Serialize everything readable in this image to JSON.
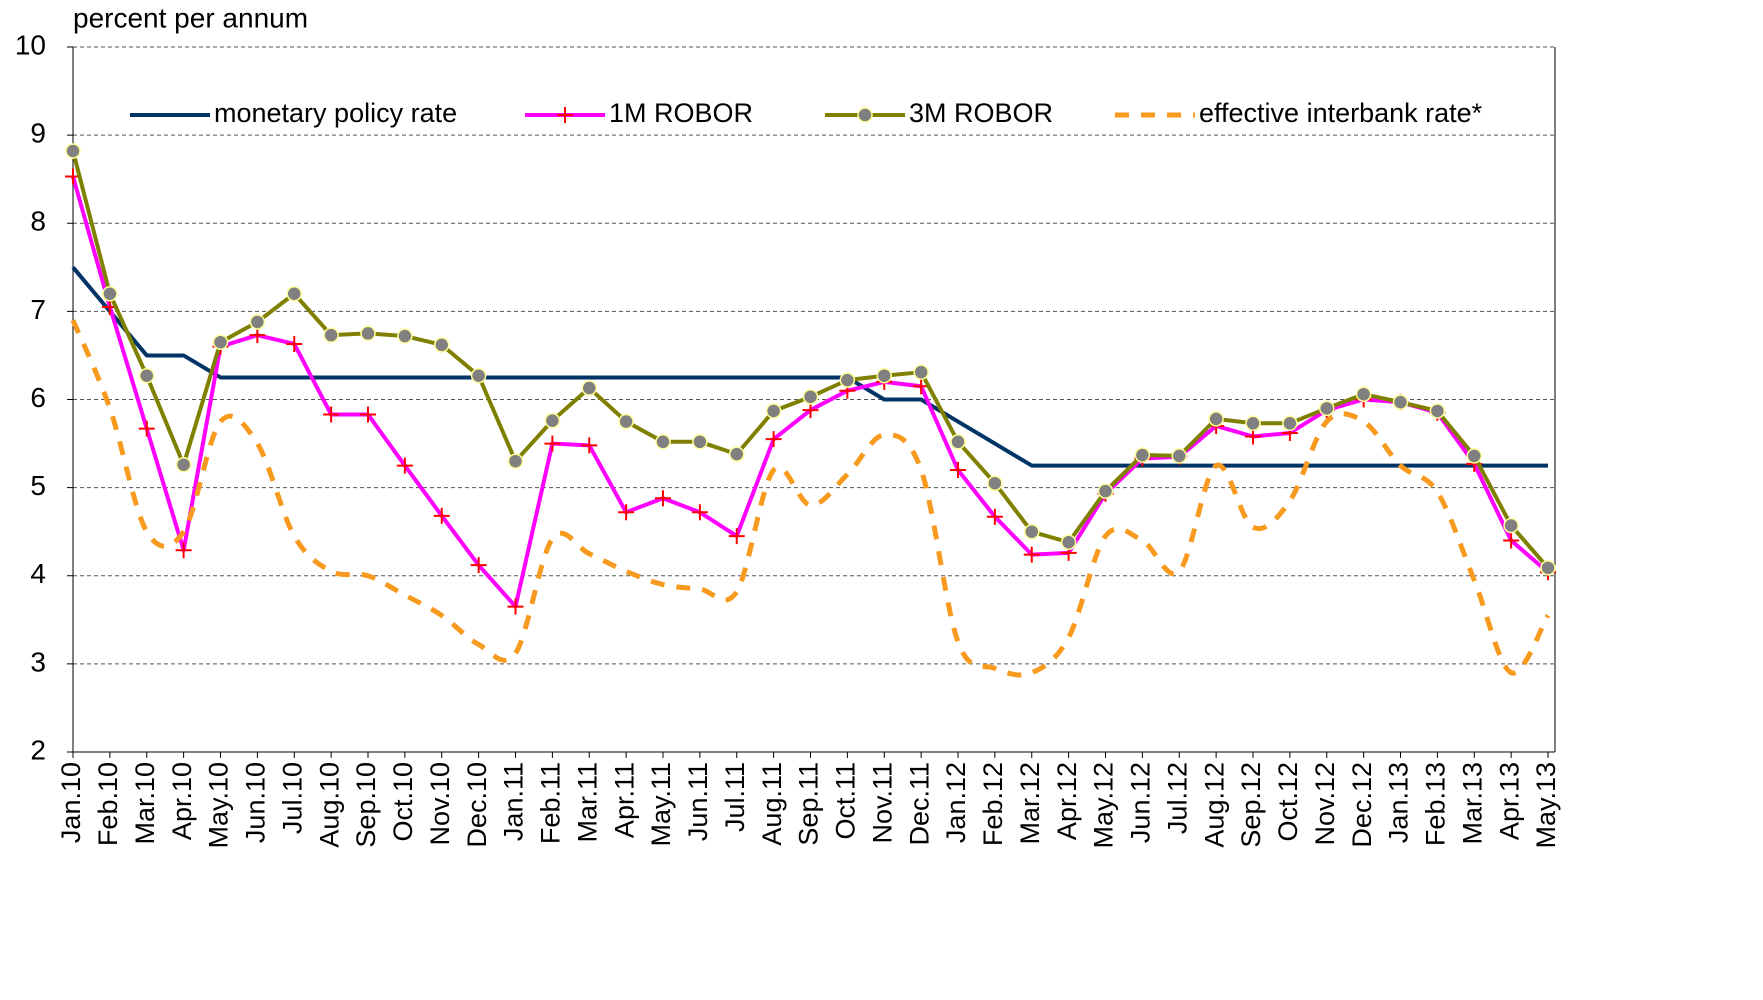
{
  "chart_data": {
    "type": "line",
    "y_axis_label": "percent per annum",
    "categories": [
      "Jan.10",
      "Feb.10",
      "Mar.10",
      "Apr.10",
      "May.10",
      "Jun.10",
      "Jul.10",
      "Aug.10",
      "Sep.10",
      "Oct.10",
      "Nov.10",
      "Dec.10",
      "Jan.11",
      "Feb.11",
      "Mar.11",
      "Apr.11",
      "May.11",
      "Jun.11",
      "Jul.11",
      "Aug.11",
      "Sep.11",
      "Oct.11",
      "Nov.11",
      "Dec.11",
      "Jan.12",
      "Feb.12",
      "Mar.12",
      "Apr.12",
      "May.12",
      "Jun.12",
      "Jul.12",
      "Aug.12",
      "Sep.12",
      "Oct.12",
      "Nov.12",
      "Dec.12",
      "Jan.13",
      "Feb.13",
      "Mar.13",
      "Apr.13",
      "May.13"
    ],
    "ylim": [
      2,
      10
    ],
    "yticks": [
      2,
      3,
      4,
      5,
      6,
      7,
      8,
      9,
      10
    ],
    "grid": true,
    "legend": "top",
    "series": [
      {
        "name": "monetary policy rate",
        "color": "#003366",
        "style": "solid",
        "marker": "none",
        "values": [
          7.5,
          7.0,
          6.5,
          6.5,
          6.25,
          6.25,
          6.25,
          6.25,
          6.25,
          6.25,
          6.25,
          6.25,
          6.25,
          6.25,
          6.25,
          6.25,
          6.25,
          6.25,
          6.25,
          6.25,
          6.25,
          6.25,
          6.0,
          6.0,
          5.75,
          5.5,
          5.25,
          5.25,
          5.25,
          5.25,
          5.25,
          5.25,
          5.25,
          5.25,
          5.25,
          5.25,
          5.25,
          5.25,
          5.25,
          5.25,
          5.25
        ]
      },
      {
        "name": "1M ROBOR",
        "color": "#ff00ff",
        "style": "solid",
        "marker": "plus",
        "marker_color": "#ff0000",
        "values": [
          8.53,
          7.05,
          5.67,
          4.29,
          6.6,
          6.73,
          6.63,
          5.83,
          5.83,
          5.25,
          4.68,
          4.12,
          3.65,
          5.5,
          5.48,
          4.72,
          4.88,
          4.72,
          4.45,
          5.55,
          5.88,
          6.1,
          6.2,
          6.15,
          5.2,
          4.67,
          4.24,
          4.26,
          4.93,
          5.33,
          5.35,
          5.7,
          5.58,
          5.62,
          5.88,
          6.0,
          5.97,
          5.85,
          5.27,
          4.4,
          4.04
        ]
      },
      {
        "name": "3M ROBOR",
        "color": "#808000",
        "style": "solid",
        "marker": "circle",
        "marker_color": "#808080",
        "values": [
          8.82,
          7.2,
          6.27,
          5.26,
          6.65,
          6.88,
          7.2,
          6.73,
          6.75,
          6.72,
          6.62,
          6.27,
          5.3,
          5.76,
          6.13,
          5.75,
          5.52,
          5.52,
          5.38,
          5.87,
          6.03,
          6.22,
          6.27,
          6.31,
          5.52,
          5.05,
          4.5,
          4.38,
          4.96,
          5.37,
          5.36,
          5.78,
          5.73,
          5.73,
          5.9,
          6.06,
          5.97,
          5.87,
          5.36,
          4.57,
          4.09
        ]
      },
      {
        "name": "effective interbank rate*",
        "color": "#f79a1e",
        "style": "dashed",
        "marker": "none",
        "smooth": true,
        "values": [
          6.9,
          5.9,
          4.5,
          4.5,
          5.75,
          5.5,
          4.45,
          4.05,
          4.0,
          3.78,
          3.55,
          3.22,
          3.12,
          4.42,
          4.25,
          4.05,
          3.9,
          3.85,
          3.82,
          5.2,
          4.8,
          5.15,
          5.6,
          5.2,
          3.25,
          2.95,
          2.9,
          3.3,
          4.45,
          4.4,
          4.05,
          5.25,
          4.55,
          4.85,
          5.75,
          5.75,
          5.25,
          4.95,
          3.95,
          2.9,
          3.55
        ]
      }
    ]
  }
}
